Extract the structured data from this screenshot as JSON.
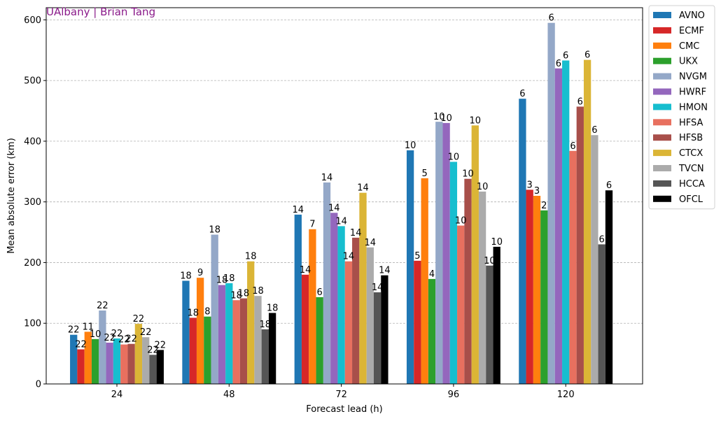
{
  "credit": "UAlbany | Brian Tang",
  "chart_data": {
    "type": "bar",
    "xlabel": "Forecast lead (h)",
    "ylabel": "Mean absolute error (km)",
    "ylim": [
      0,
      620
    ],
    "yticks": [
      0,
      100,
      200,
      300,
      400,
      500,
      600
    ],
    "grid": "y-dashed",
    "legend_position": "outside-right",
    "categories": [
      "24",
      "48",
      "72",
      "96",
      "120"
    ],
    "series": [
      {
        "name": "AVNO",
        "color": "#1f77b4",
        "values": [
          81,
          170,
          279,
          385,
          470
        ],
        "counts": [
          "22",
          "18",
          "14",
          "10",
          "6"
        ]
      },
      {
        "name": "ECMF",
        "color": "#d62728",
        "values": [
          57,
          109,
          180,
          203,
          320
        ],
        "counts": [
          "22",
          "18",
          "14",
          "5",
          "3"
        ]
      },
      {
        "name": "CMC",
        "color": "#ff7f0e",
        "values": [
          86,
          175,
          255,
          339,
          310
        ],
        "counts": [
          "11",
          "9",
          "7",
          "5",
          "3"
        ]
      },
      {
        "name": "UKX",
        "color": "#2ca02c",
        "values": [
          74,
          111,
          143,
          173,
          286
        ],
        "counts": [
          "10",
          "8",
          "6",
          "4",
          "2"
        ]
      },
      {
        "name": "NVGM",
        "color": "#94a8c8",
        "values": [
          121,
          246,
          332,
          432,
          595
        ],
        "counts": [
          "22",
          "18",
          "14",
          "10",
          "6"
        ]
      },
      {
        "name": "HWRF",
        "color": "#9467bd",
        "values": [
          68,
          163,
          282,
          430,
          520
        ],
        "counts": [
          "22",
          "18",
          "14",
          "10",
          "6"
        ]
      },
      {
        "name": "HMON",
        "color": "#17becf",
        "values": [
          75,
          166,
          260,
          366,
          533
        ],
        "counts": [
          "22",
          "18",
          "14",
          "10",
          "6"
        ]
      },
      {
        "name": "HFSA",
        "color": "#e8705f",
        "values": [
          65,
          138,
          202,
          261,
          384
        ],
        "counts": [
          "22",
          "18",
          "14",
          "10",
          "6"
        ]
      },
      {
        "name": "HFSB",
        "color": "#a84f4a",
        "values": [
          66,
          141,
          241,
          338,
          457
        ],
        "counts": [
          "22",
          "18",
          "14",
          "10",
          "6"
        ]
      },
      {
        "name": "CTCX",
        "color": "#dbb536",
        "values": [
          99,
          202,
          315,
          426,
          534
        ],
        "counts": [
          "22",
          "18",
          "14",
          "10",
          "6"
        ]
      },
      {
        "name": "TVCN",
        "color": "#ababab",
        "values": [
          77,
          145,
          225,
          317,
          410
        ],
        "counts": [
          "22",
          "18",
          "14",
          "10",
          "6"
        ]
      },
      {
        "name": "HCCA",
        "color": "#555555",
        "values": [
          48,
          90,
          151,
          195,
          230
        ],
        "counts": [
          "22",
          "18",
          "14",
          "10",
          "6"
        ]
      },
      {
        "name": "OFCL",
        "color": "#000000",
        "values": [
          56,
          117,
          179,
          226,
          319
        ],
        "counts": [
          "22",
          "18",
          "14",
          "10",
          "6"
        ]
      }
    ]
  }
}
